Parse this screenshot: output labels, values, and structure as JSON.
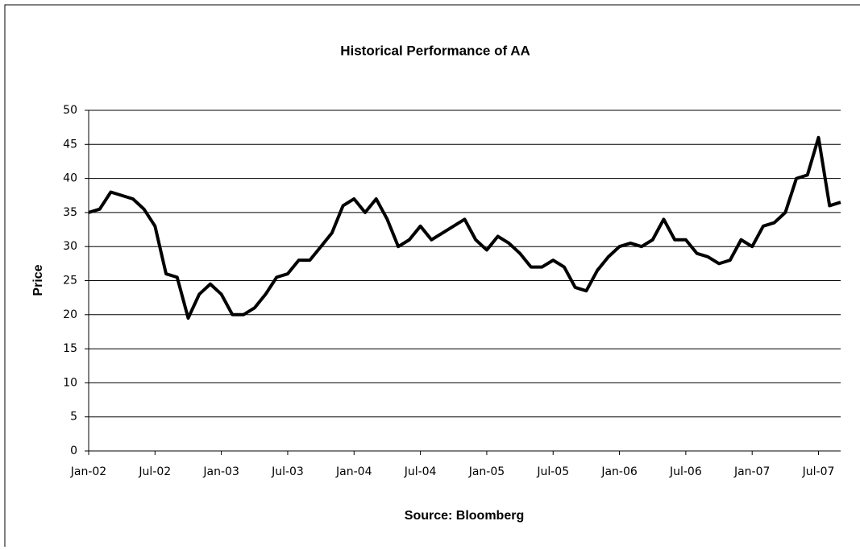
{
  "chart_data": {
    "type": "line",
    "title": "Historical Performance of AA",
    "ylabel": "Price",
    "xlabel": "Source: Bloomberg",
    "x": [
      "2002-01",
      "2002-02",
      "2002-03",
      "2002-04",
      "2002-05",
      "2002-06",
      "2002-07",
      "2002-08",
      "2002-09",
      "2002-10",
      "2002-11",
      "2002-12",
      "2003-01",
      "2003-02",
      "2003-03",
      "2003-04",
      "2003-05",
      "2003-06",
      "2003-07",
      "2003-08",
      "2003-09",
      "2003-10",
      "2003-11",
      "2003-12",
      "2004-01",
      "2004-02",
      "2004-03",
      "2004-04",
      "2004-05",
      "2004-06",
      "2004-07",
      "2004-08",
      "2004-09",
      "2004-10",
      "2004-11",
      "2004-12",
      "2005-01",
      "2005-02",
      "2005-03",
      "2005-04",
      "2005-05",
      "2005-06",
      "2005-07",
      "2005-08",
      "2005-09",
      "2005-10",
      "2005-11",
      "2005-12",
      "2006-01",
      "2006-02",
      "2006-03",
      "2006-04",
      "2006-05",
      "2006-06",
      "2006-07",
      "2006-08",
      "2006-09",
      "2006-10",
      "2006-11",
      "2006-12",
      "2007-01",
      "2007-02",
      "2007-03",
      "2007-04",
      "2007-05",
      "2007-06",
      "2007-07",
      "2007-08",
      "2007-09"
    ],
    "series": [
      {
        "name": "AA",
        "color": "#000000",
        "values": [
          35,
          35.5,
          38,
          37.5,
          37,
          35.5,
          33,
          26,
          25.5,
          19.5,
          23,
          24.5,
          23,
          20,
          20,
          21,
          23,
          25.5,
          26,
          28,
          28,
          30,
          32,
          36,
          37,
          35,
          37,
          34,
          30,
          31,
          33,
          31,
          32,
          33,
          34,
          31,
          29.5,
          31.5,
          30.5,
          29,
          27,
          27,
          28,
          27,
          24,
          23.5,
          26.5,
          28.5,
          30,
          30.5,
          30,
          31,
          34,
          31,
          31,
          29,
          28.5,
          27.5,
          28,
          31,
          30,
          33,
          33.5,
          35,
          40,
          40.5,
          46,
          36,
          36.5
        ]
      }
    ],
    "xlim": [
      "2002-01",
      "2007-09"
    ],
    "xticks": [
      {
        "value": "2002-01",
        "label": "Jan-02"
      },
      {
        "value": "2002-07",
        "label": "Jul-02"
      },
      {
        "value": "2003-01",
        "label": "Jan-03"
      },
      {
        "value": "2003-07",
        "label": "Jul-03"
      },
      {
        "value": "2004-01",
        "label": "Jan-04"
      },
      {
        "value": "2004-07",
        "label": "Jul-04"
      },
      {
        "value": "2005-01",
        "label": "Jan-05"
      },
      {
        "value": "2005-07",
        "label": "Jul-05"
      },
      {
        "value": "2006-01",
        "label": "Jan-06"
      },
      {
        "value": "2006-07",
        "label": "Jul-06"
      },
      {
        "value": "2007-01",
        "label": "Jan-07"
      },
      {
        "value": "2007-07",
        "label": "Jul-07"
      }
    ],
    "ylim": [
      0,
      50
    ],
    "yticks": [
      0,
      5,
      10,
      15,
      20,
      25,
      30,
      35,
      40,
      45,
      50
    ],
    "grid": true
  }
}
